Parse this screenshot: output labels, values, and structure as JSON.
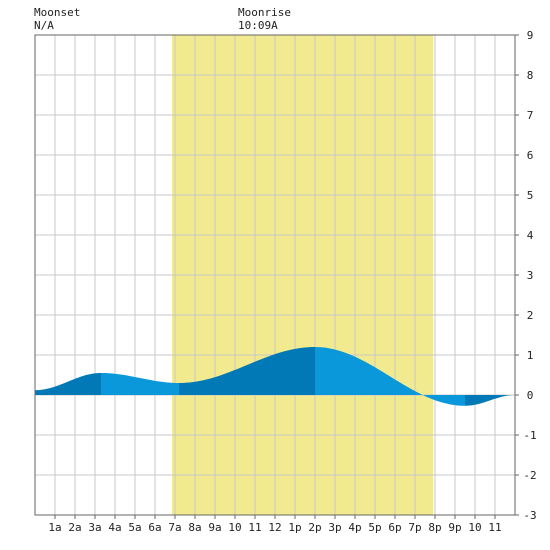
{
  "header": {
    "moonset_label": "Moonset",
    "moonset_time": "N/A",
    "moonrise_label": "Moonrise",
    "moonrise_time": "10:09A"
  },
  "chart_data": {
    "type": "area",
    "title": "",
    "xlabel": "",
    "ylabel": "",
    "xlim": [
      0,
      24
    ],
    "ylim": [
      -3,
      9
    ],
    "grid": true,
    "x_tick_labels": [
      "1a",
      "2a",
      "3a",
      "4a",
      "5a",
      "6a",
      "7a",
      "8a",
      "9a",
      "10",
      "11",
      "12",
      "1p",
      "2p",
      "3p",
      "4p",
      "5p",
      "6p",
      "7p",
      "8p",
      "9p",
      "10",
      "11"
    ],
    "y_tick_labels": [
      "-3",
      "-2",
      "-1",
      "0",
      "1",
      "2",
      "3",
      "4",
      "5",
      "6",
      "7",
      "8",
      "9"
    ],
    "daylight_band": {
      "start_hour": 6.85,
      "end_hour": 19.9,
      "color": "#f2ea8e"
    },
    "colors": {
      "tide_light": "#0a98da",
      "tide_dark": "#0079b6",
      "grid": "#c8c8c8",
      "axis": "#666666"
    },
    "tide_extrema": [
      {
        "hour": 0,
        "value": 0.12
      },
      {
        "hour": 3.3,
        "value": 0.55
      },
      {
        "hour": 7.2,
        "value": 0.3
      },
      {
        "hour": 14.0,
        "value": 1.2
      },
      {
        "hour": 21.5,
        "value": -0.27
      },
      {
        "hour": 24,
        "value": 0.0
      }
    ],
    "series": [
      {
        "x": [
          0,
          1,
          2,
          3,
          4,
          5,
          6,
          7,
          8,
          9,
          10,
          11,
          12,
          13,
          14,
          15,
          16,
          17,
          18,
          19,
          20,
          21,
          22,
          23,
          24
        ],
        "values": [
          0.12,
          0.28,
          0.44,
          0.54,
          0.52,
          0.45,
          0.37,
          0.31,
          0.33,
          0.45,
          0.65,
          0.88,
          1.06,
          1.17,
          1.2,
          1.12,
          0.93,
          0.66,
          0.36,
          0.08,
          -0.14,
          -0.26,
          -0.25,
          -0.12,
          0.0
        ]
      }
    ]
  }
}
